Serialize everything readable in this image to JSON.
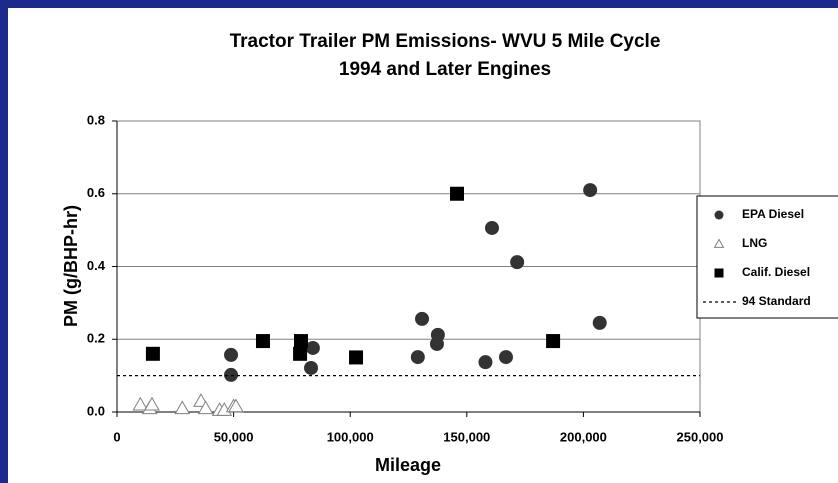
{
  "chart_data": {
    "type": "scatter",
    "title": "Tractor Trailer PM Emissions- WVU 5 Mile Cycle",
    "subtitle": "1994 and Later Engines",
    "x_label": "Mileage",
    "y_label": "PM (g/BHP-hr)",
    "xlim": [
      0,
      250000
    ],
    "ylim": [
      0,
      0.8
    ],
    "xticks": [
      0,
      {
        "value": 50000,
        "label": "50,000"
      },
      {
        "value": 100000,
        "label": "100,000"
      },
      {
        "value": 150000,
        "label": "150,000"
      },
      {
        "value": 200000,
        "label": "200,000"
      },
      {
        "value": 250000,
        "label": "250,000"
      }
    ],
    "yticks": [
      {
        "value": 0,
        "label": "0.0"
      },
      {
        "value": 0.2,
        "label": "0.2"
      },
      {
        "value": 0.4,
        "label": "0.4"
      },
      {
        "value": 0.6,
        "label": "0.6"
      },
      {
        "value": 0.8,
        "label": "0.8"
      }
    ],
    "grid": true,
    "legend": "right",
    "series": [
      {
        "name": "EPA Diesel",
        "marker": "circle",
        "color": "#333333",
        "x": [
          48900,
          48900,
          84000,
          83200,
          129000,
          130800,
          137600,
          137200,
          158000,
          160800,
          166800,
          171600,
          202900,
          207000
        ],
        "values": [
          0.157,
          0.102,
          0.176,
          0.121,
          0.151,
          0.256,
          0.212,
          0.187,
          0.137,
          0.506,
          0.151,
          0.412,
          0.61,
          0.245
        ]
      },
      {
        "name": "LNG",
        "marker": "triangle",
        "color": "#808080",
        "x": [
          10000,
          14000,
          15000,
          28000,
          36000,
          38000,
          44000,
          46000,
          50000,
          51000
        ],
        "values": [
          0.02,
          0.01,
          0.02,
          0.01,
          0.03,
          0.01,
          0.005,
          0.005,
          0.015,
          0.015
        ]
      },
      {
        "name": "Calif. Diesel",
        "marker": "square",
        "color": "#000000",
        "x": [
          15400,
          62600,
          78900,
          78500,
          102500,
          145800,
          187000
        ],
        "values": [
          0.16,
          0.195,
          0.195,
          0.16,
          0.15,
          0.6,
          0.195
        ]
      },
      {
        "name": "94 Standard",
        "marker": "dash",
        "color": "#000000",
        "x": [
          0,
          250000
        ],
        "values": [
          0.1,
          0.1
        ]
      }
    ]
  }
}
